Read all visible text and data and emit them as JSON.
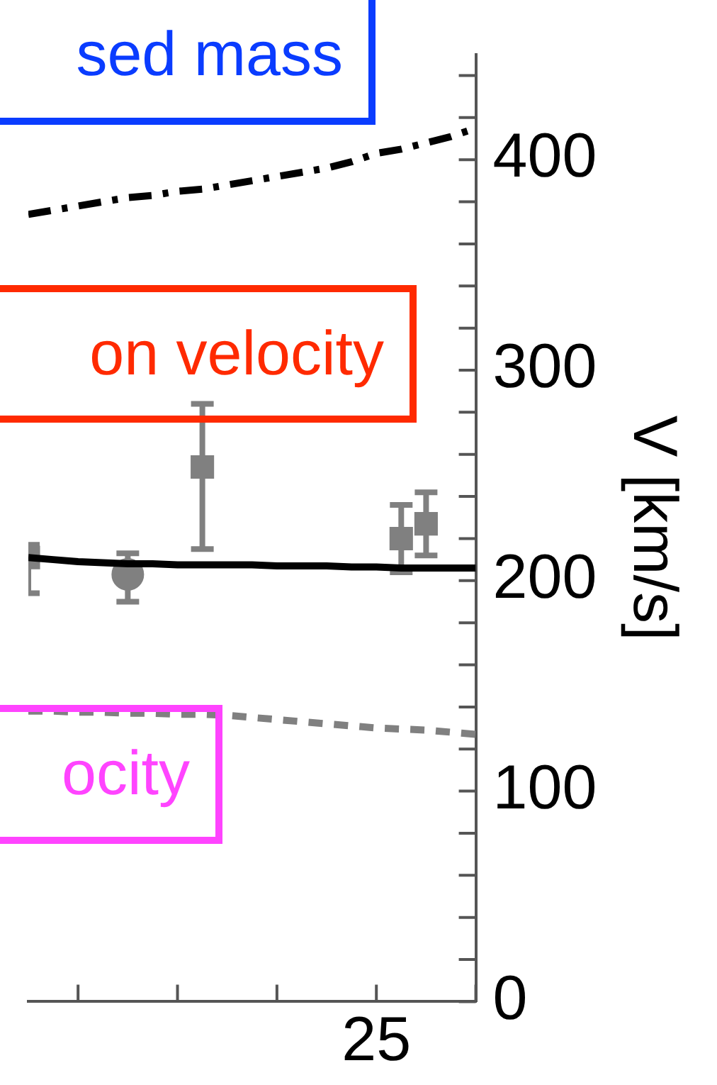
{
  "chart_data": {
    "type": "line",
    "ylabel": "V [km/s]",
    "annotations": [
      "sed mass",
      "on velocity",
      "ocity"
    ],
    "categories": [
      null,
      null,
      null,
      null,
      null,
      null,
      null,
      null,
      null,
      null,
      null,
      null,
      null,
      null,
      "25",
      null,
      null,
      null,
      null
    ],
    "ylim": [
      0,
      450
    ],
    "yticks": [
      0,
      {
        "value": 20,
        "label": null
      },
      {
        "value": 40,
        "label": null
      },
      {
        "value": 60,
        "label": null
      },
      {
        "value": 80,
        "label": null
      },
      100,
      {
        "value": 120,
        "label": null
      },
      {
        "value": 140,
        "label": null
      },
      {
        "value": 160,
        "label": null
      },
      {
        "value": 180,
        "label": null
      },
      200,
      {
        "value": 220,
        "label": null
      },
      {
        "value": 240,
        "label": null
      },
      {
        "value": 260,
        "label": null
      },
      {
        "value": 280,
        "label": null
      },
      300,
      {
        "value": 320,
        "label": null
      },
      {
        "value": 340,
        "label": null
      },
      {
        "value": 360,
        "label": null
      },
      {
        "value": 380,
        "label": null
      },
      400,
      {
        "value": 420,
        "label": null
      },
      {
        "value": 440,
        "label": null
      }
    ],
    "grid": false,
    "legend": false,
    "series": [
      {
        "color": "#000000",
        "line_style": "dashed",
        "marker": "none",
        "values": [
          374,
          376,
          378,
          380,
          382,
          383,
          385,
          386,
          388,
          390,
          392,
          394,
          396,
          399,
          403,
          405,
          408,
          411,
          415
        ]
      },
      {
        "color": "#000000",
        "line_style": "solid",
        "marker": "none",
        "values": [
          211,
          210,
          209,
          208.5,
          208,
          208,
          207.5,
          207.5,
          207.5,
          207.5,
          207,
          207,
          207,
          206.5,
          206.5,
          206,
          206,
          206,
          206
        ]
      },
      {
        "color": "#808080",
        "line_style": "dotted",
        "marker": "none",
        "values": [
          138,
          138,
          137.5,
          137.5,
          137,
          137,
          136.5,
          136.5,
          136,
          135,
          134,
          133,
          132,
          131,
          130,
          129.5,
          129,
          128,
          127
        ]
      },
      {
        "type": "scatter",
        "color": "#808080",
        "marker": "square",
        "values": [
          211,
          null,
          null,
          null,
          null,
          null,
          null,
          254,
          null,
          null,
          null,
          null,
          null,
          null,
          null,
          220,
          227,
          null,
          null
        ],
        "errors": [
          [
            194,
            217
          ],
          null,
          null,
          null,
          null,
          null,
          null,
          [
            215,
            284
          ],
          null,
          null,
          null,
          null,
          null,
          null,
          null,
          [
            204,
            236
          ],
          [
            212,
            242
          ],
          null,
          null
        ]
      },
      {
        "type": "scatter",
        "color": "#808080",
        "marker": "circle",
        "values": [
          null,
          null,
          null,
          null,
          203,
          null,
          null,
          null,
          null,
          null,
          null,
          null,
          null,
          null,
          null,
          null,
          null,
          null,
          null
        ],
        "errors": [
          null,
          null,
          null,
          null,
          [
            190,
            213
          ],
          null,
          null,
          null,
          null,
          null,
          null,
          null,
          null,
          null,
          null,
          null,
          null,
          null,
          null
        ]
      }
    ]
  }
}
